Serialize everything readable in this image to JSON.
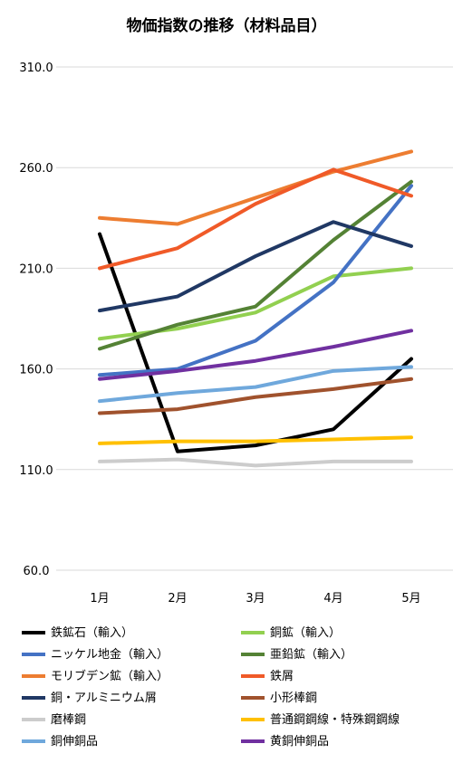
{
  "chart_data": {
    "type": "line",
    "title": "物価指数の推移（材料品目）",
    "categories": [
      "1月",
      "2月",
      "3月",
      "4月",
      "5月"
    ],
    "ylim": [
      60,
      310
    ],
    "yticks": [
      "60.0",
      "110.0",
      "160.0",
      "210.0",
      "260.0",
      "310.0"
    ],
    "ytick_values": [
      60,
      110,
      160,
      210,
      260,
      310
    ],
    "grid": "horizontal",
    "legend": "bottom",
    "series": [
      {
        "name": "鉄鉱石（輸入）",
        "color": "#000000",
        "values": [
          227,
          119,
          122,
          130,
          165
        ]
      },
      {
        "name": "銅鉱（輸入）",
        "color": "#92d050",
        "values": [
          175,
          180,
          188,
          206,
          210
        ]
      },
      {
        "name": "ニッケル地金（輸入）",
        "color": "#4472c4",
        "values": [
          157,
          160,
          174,
          203,
          251
        ]
      },
      {
        "name": "亜鉛鉱（輸入）",
        "color": "#548235",
        "values": [
          170,
          182,
          191,
          224,
          253
        ]
      },
      {
        "name": "モリブデン鉱（輸入）",
        "color": "#ed7d31",
        "values": [
          235,
          232,
          245,
          258,
          268
        ]
      },
      {
        "name": "鉄屑",
        "color": "#f05a28",
        "values": [
          210,
          220,
          242,
          259,
          246
        ]
      },
      {
        "name": "銅・アルミニウム屑",
        "color": "#203864",
        "values": [
          189,
          196,
          216,
          233,
          221
        ]
      },
      {
        "name": "小形棒鋼",
        "color": "#a0522d",
        "values": [
          138,
          140,
          146,
          150,
          155
        ]
      },
      {
        "name": "磨棒鋼",
        "color": "#cccccc",
        "values": [
          114,
          115,
          112,
          114,
          114
        ]
      },
      {
        "name": "普通鋼鋼線・特殊鋼鋼線",
        "color": "#ffc000",
        "values": [
          123,
          124,
          124,
          125,
          126
        ]
      },
      {
        "name": "銅伸銅品",
        "color": "#6fa8dc",
        "values": [
          144,
          148,
          151,
          159,
          161
        ]
      },
      {
        "name": "黄銅伸銅品",
        "color": "#7030a0",
        "values": [
          155,
          159,
          164,
          171,
          179
        ]
      }
    ]
  }
}
